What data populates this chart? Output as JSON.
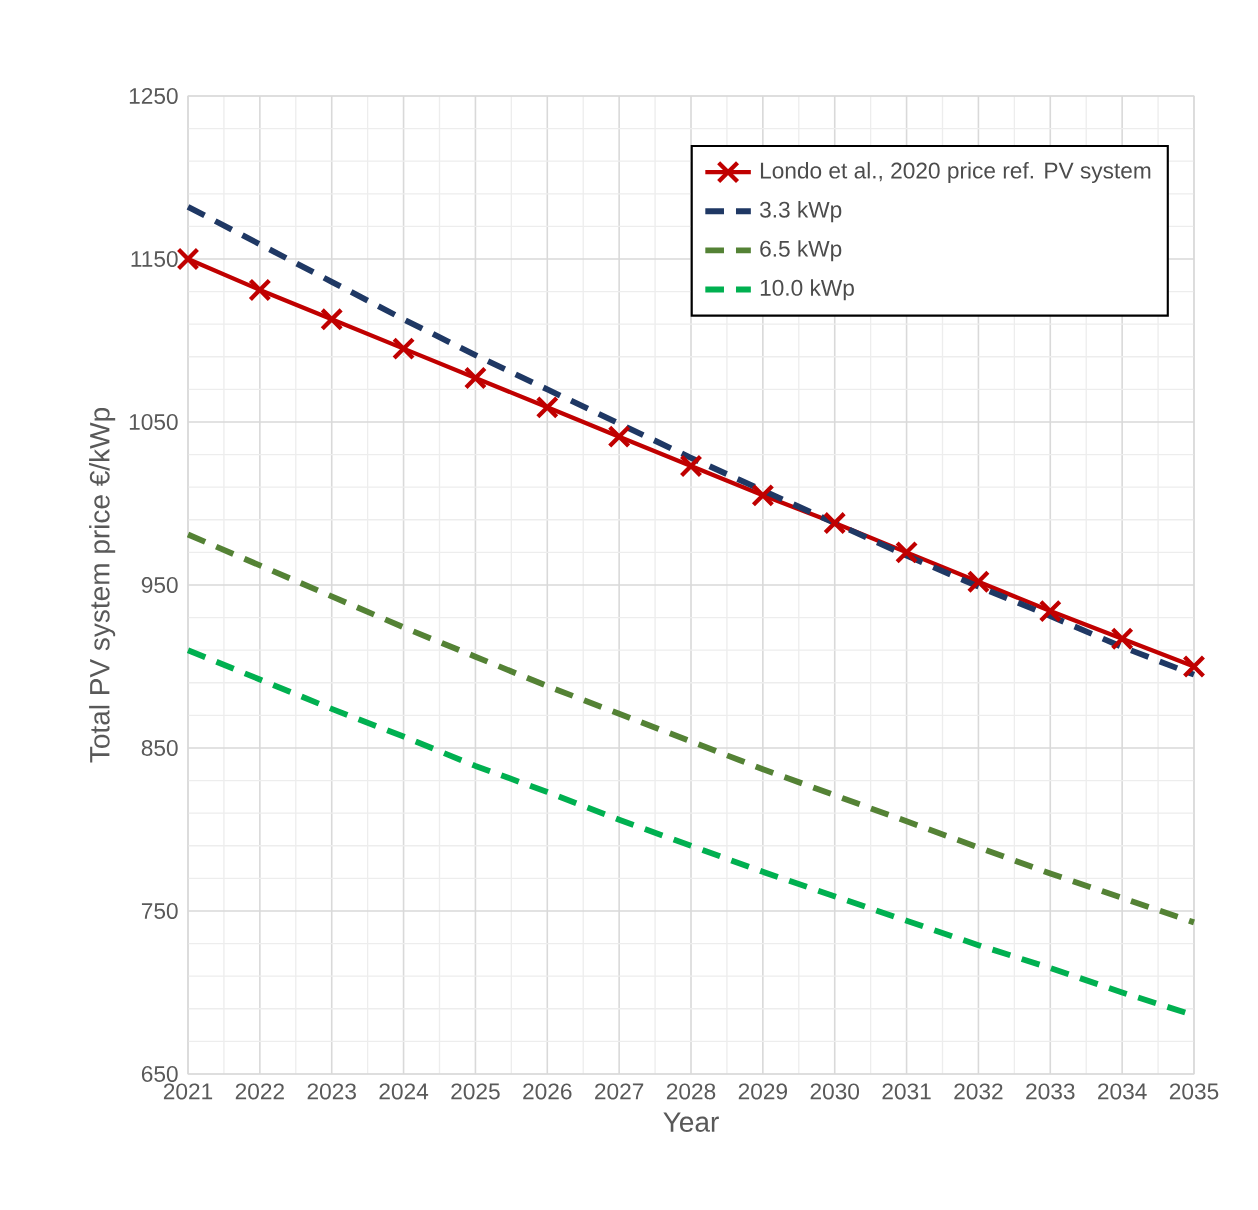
{
  "chart_data": {
    "type": "line",
    "xlabel": "Year",
    "ylabel": "Total PV system price €/kWp",
    "x": [
      2021,
      2022,
      2023,
      2024,
      2025,
      2026,
      2027,
      2028,
      2029,
      2030,
      2031,
      2032,
      2033,
      2034,
      2035
    ],
    "xlim": [
      2021,
      2035
    ],
    "xticks": [
      2021,
      2022,
      2023,
      2024,
      2025,
      2026,
      2027,
      2028,
      2029,
      2030,
      2031,
      2032,
      2033,
      2034,
      2035
    ],
    "ylim": [
      650,
      1250
    ],
    "yticks": [
      650,
      750,
      850,
      950,
      1050,
      1150,
      1250
    ],
    "grid": true,
    "legend": "top right",
    "series": [
      {
        "name": "Londo et al., 2020 price ref. PV system",
        "color": "#c00000",
        "marker": "cross",
        "line_style": "solid",
        "values": [
          1150,
          1131,
          1113,
          1095,
          1077,
          1059,
          1041,
          1023,
          1005,
          988,
          970,
          952,
          934,
          917,
          900
        ]
      },
      {
        "name": "3.3 kWp",
        "color": "#1f3864",
        "marker": "none",
        "line_style": "dashed",
        "values": [
          1182,
          1159,
          1136,
          1113,
          1091,
          1070,
          1049,
          1028,
          1008,
          988,
          968,
          949,
          931,
          912,
          895
        ]
      },
      {
        "name": "6.5 kWp",
        "color": "#548235",
        "marker": "none",
        "line_style": "dashed",
        "values": [
          981,
          962,
          943,
          924,
          906,
          888,
          871,
          854,
          837,
          821,
          805,
          789,
          773,
          758,
          743
        ]
      },
      {
        "name": "10.0 kWp",
        "color": "#00b050",
        "marker": "none",
        "line_style": "dashed",
        "values": [
          910,
          892,
          874,
          857,
          839,
          823,
          806,
          790,
          774,
          759,
          744,
          729,
          715,
          700,
          686
        ]
      }
    ]
  }
}
